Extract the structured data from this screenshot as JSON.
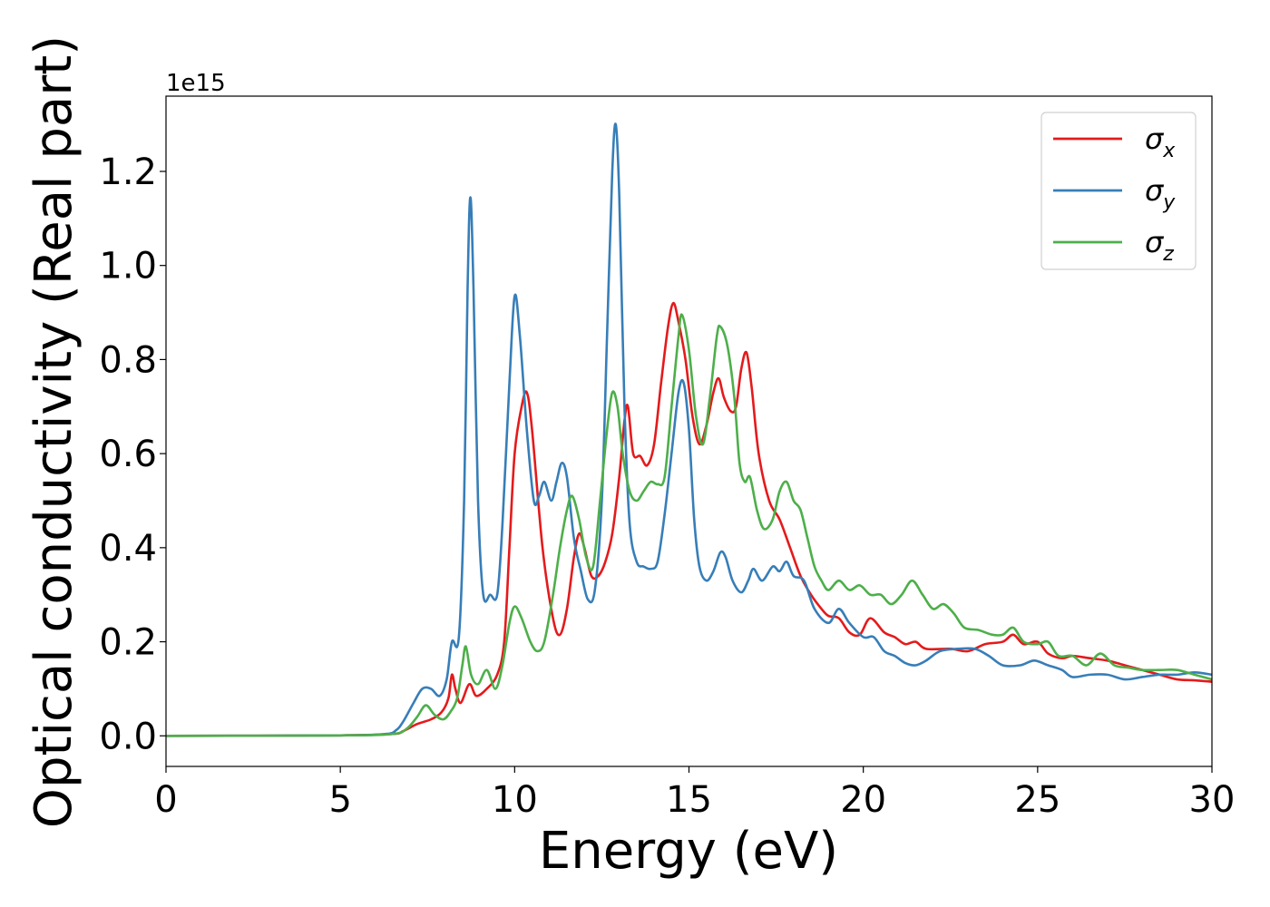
{
  "chart_data": {
    "type": "line",
    "title": "",
    "xlabel": "Energy (eV)",
    "ylabel": "Optical conductivity (Real part)",
    "y_offset_label": "1e15",
    "xlim": [
      0,
      30
    ],
    "ylim": [
      -0.065,
      1.36
    ],
    "x_ticks": [
      0,
      5,
      10,
      15,
      20,
      25,
      30
    ],
    "x_tick_labels": [
      "0",
      "5",
      "10",
      "15",
      "20",
      "25",
      "30"
    ],
    "y_ticks": [
      0.0,
      0.2,
      0.4,
      0.6,
      0.8,
      1.0,
      1.2
    ],
    "y_tick_labels": [
      "0.0",
      "0.2",
      "0.4",
      "0.6",
      "0.8",
      "1.0",
      "1.2"
    ],
    "grid": false,
    "legend_position": "top-right",
    "series": [
      {
        "name": "σx",
        "symbol": "σ",
        "subscript": "x",
        "color": "#e41a1c",
        "points": [
          [
            0,
            0
          ],
          [
            5,
            0.001
          ],
          [
            6.5,
            0.004
          ],
          [
            6.8,
            0.01
          ],
          [
            7.2,
            0.025
          ],
          [
            7.6,
            0.035
          ],
          [
            7.9,
            0.05
          ],
          [
            8.1,
            0.08
          ],
          [
            8.2,
            0.13
          ],
          [
            8.3,
            0.1
          ],
          [
            8.45,
            0.07
          ],
          [
            8.7,
            0.11
          ],
          [
            8.9,
            0.085
          ],
          [
            9.2,
            0.1
          ],
          [
            9.5,
            0.13
          ],
          [
            9.7,
            0.2
          ],
          [
            9.85,
            0.4
          ],
          [
            10.0,
            0.6
          ],
          [
            10.2,
            0.7
          ],
          [
            10.35,
            0.73
          ],
          [
            10.5,
            0.65
          ],
          [
            10.8,
            0.4
          ],
          [
            11.1,
            0.25
          ],
          [
            11.3,
            0.215
          ],
          [
            11.5,
            0.27
          ],
          [
            11.7,
            0.38
          ],
          [
            11.85,
            0.43
          ],
          [
            12.0,
            0.4
          ],
          [
            12.2,
            0.34
          ],
          [
            12.4,
            0.34
          ],
          [
            12.6,
            0.37
          ],
          [
            12.8,
            0.43
          ],
          [
            13.0,
            0.55
          ],
          [
            13.15,
            0.67
          ],
          [
            13.25,
            0.7
          ],
          [
            13.4,
            0.6
          ],
          [
            13.6,
            0.595
          ],
          [
            13.8,
            0.575
          ],
          [
            14.0,
            0.62
          ],
          [
            14.2,
            0.75
          ],
          [
            14.4,
            0.87
          ],
          [
            14.55,
            0.92
          ],
          [
            14.7,
            0.88
          ],
          [
            14.9,
            0.8
          ],
          [
            15.1,
            0.68
          ],
          [
            15.3,
            0.62
          ],
          [
            15.5,
            0.66
          ],
          [
            15.7,
            0.73
          ],
          [
            15.85,
            0.76
          ],
          [
            16.0,
            0.72
          ],
          [
            16.2,
            0.69
          ],
          [
            16.35,
            0.7
          ],
          [
            16.5,
            0.78
          ],
          [
            16.65,
            0.815
          ],
          [
            16.8,
            0.74
          ],
          [
            17.0,
            0.6
          ],
          [
            17.3,
            0.5
          ],
          [
            17.6,
            0.46
          ],
          [
            17.9,
            0.4
          ],
          [
            18.2,
            0.34
          ],
          [
            18.5,
            0.3
          ],
          [
            18.8,
            0.27
          ],
          [
            19.0,
            0.255
          ],
          [
            19.3,
            0.25
          ],
          [
            19.6,
            0.22
          ],
          [
            19.9,
            0.215
          ],
          [
            20.2,
            0.25
          ],
          [
            20.6,
            0.22
          ],
          [
            20.9,
            0.21
          ],
          [
            21.2,
            0.195
          ],
          [
            21.5,
            0.2
          ],
          [
            21.8,
            0.185
          ],
          [
            22.5,
            0.185
          ],
          [
            23.0,
            0.18
          ],
          [
            23.5,
            0.195
          ],
          [
            24.0,
            0.2
          ],
          [
            24.3,
            0.215
          ],
          [
            24.6,
            0.195
          ],
          [
            25.0,
            0.2
          ],
          [
            25.3,
            0.175
          ],
          [
            25.7,
            0.165
          ],
          [
            26.0,
            0.17
          ],
          [
            26.5,
            0.165
          ],
          [
            27.0,
            0.16
          ],
          [
            27.5,
            0.15
          ],
          [
            28.0,
            0.14
          ],
          [
            28.5,
            0.13
          ],
          [
            29.0,
            0.12
          ],
          [
            29.5,
            0.118
          ],
          [
            30.0,
            0.115
          ]
        ]
      },
      {
        "name": "σy",
        "symbol": "σ",
        "subscript": "y",
        "color": "#377eb8",
        "points": [
          [
            0,
            0
          ],
          [
            5,
            0.001
          ],
          [
            6.3,
            0.004
          ],
          [
            6.6,
            0.012
          ],
          [
            6.8,
            0.03
          ],
          [
            7.1,
            0.07
          ],
          [
            7.35,
            0.1
          ],
          [
            7.6,
            0.1
          ],
          [
            7.85,
            0.085
          ],
          [
            8.05,
            0.12
          ],
          [
            8.2,
            0.2
          ],
          [
            8.4,
            0.21
          ],
          [
            8.55,
            0.5
          ],
          [
            8.65,
            0.95
          ],
          [
            8.73,
            1.145
          ],
          [
            8.82,
            0.95
          ],
          [
            8.95,
            0.5
          ],
          [
            9.1,
            0.3
          ],
          [
            9.3,
            0.3
          ],
          [
            9.5,
            0.3
          ],
          [
            9.65,
            0.45
          ],
          [
            9.85,
            0.75
          ],
          [
            10.0,
            0.935
          ],
          [
            10.15,
            0.85
          ],
          [
            10.35,
            0.65
          ],
          [
            10.55,
            0.5
          ],
          [
            10.7,
            0.51
          ],
          [
            10.85,
            0.54
          ],
          [
            11.05,
            0.5
          ],
          [
            11.2,
            0.54
          ],
          [
            11.35,
            0.58
          ],
          [
            11.5,
            0.55
          ],
          [
            11.7,
            0.42
          ],
          [
            11.9,
            0.35
          ],
          [
            12.1,
            0.29
          ],
          [
            12.3,
            0.31
          ],
          [
            12.5,
            0.5
          ],
          [
            12.65,
            0.85
          ],
          [
            12.8,
            1.2
          ],
          [
            12.9,
            1.3
          ],
          [
            13.0,
            1.15
          ],
          [
            13.15,
            0.7
          ],
          [
            13.3,
            0.45
          ],
          [
            13.5,
            0.37
          ],
          [
            13.7,
            0.36
          ],
          [
            13.9,
            0.355
          ],
          [
            14.1,
            0.37
          ],
          [
            14.3,
            0.47
          ],
          [
            14.5,
            0.6
          ],
          [
            14.7,
            0.73
          ],
          [
            14.85,
            0.75
          ],
          [
            15.0,
            0.65
          ],
          [
            15.15,
            0.46
          ],
          [
            15.3,
            0.36
          ],
          [
            15.5,
            0.33
          ],
          [
            15.7,
            0.35
          ],
          [
            15.9,
            0.39
          ],
          [
            16.05,
            0.38
          ],
          [
            16.25,
            0.33
          ],
          [
            16.5,
            0.305
          ],
          [
            16.7,
            0.33
          ],
          [
            16.85,
            0.355
          ],
          [
            17.1,
            0.33
          ],
          [
            17.4,
            0.36
          ],
          [
            17.6,
            0.35
          ],
          [
            17.8,
            0.37
          ],
          [
            18.0,
            0.34
          ],
          [
            18.3,
            0.33
          ],
          [
            18.6,
            0.27
          ],
          [
            19.0,
            0.24
          ],
          [
            19.3,
            0.27
          ],
          [
            19.6,
            0.24
          ],
          [
            20.0,
            0.21
          ],
          [
            20.3,
            0.21
          ],
          [
            20.6,
            0.18
          ],
          [
            20.9,
            0.17
          ],
          [
            21.2,
            0.155
          ],
          [
            21.5,
            0.15
          ],
          [
            21.8,
            0.16
          ],
          [
            22.2,
            0.18
          ],
          [
            22.7,
            0.185
          ],
          [
            23.2,
            0.185
          ],
          [
            23.6,
            0.17
          ],
          [
            24.0,
            0.15
          ],
          [
            24.5,
            0.15
          ],
          [
            24.9,
            0.16
          ],
          [
            25.3,
            0.15
          ],
          [
            25.7,
            0.14
          ],
          [
            26.0,
            0.125
          ],
          [
            26.5,
            0.13
          ],
          [
            27.0,
            0.13
          ],
          [
            27.5,
            0.12
          ],
          [
            28.0,
            0.125
          ],
          [
            28.5,
            0.13
          ],
          [
            29.0,
            0.13
          ],
          [
            29.5,
            0.135
          ],
          [
            30.0,
            0.13
          ]
        ]
      },
      {
        "name": "σz",
        "symbol": "σ",
        "subscript": "z",
        "color": "#4daf4a",
        "points": [
          [
            0,
            0
          ],
          [
            5,
            0.001
          ],
          [
            6.5,
            0.004
          ],
          [
            6.9,
            0.015
          ],
          [
            7.2,
            0.04
          ],
          [
            7.45,
            0.065
          ],
          [
            7.7,
            0.045
          ],
          [
            7.95,
            0.035
          ],
          [
            8.15,
            0.05
          ],
          [
            8.35,
            0.08
          ],
          [
            8.5,
            0.15
          ],
          [
            8.6,
            0.19
          ],
          [
            8.75,
            0.13
          ],
          [
            8.95,
            0.11
          ],
          [
            9.2,
            0.14
          ],
          [
            9.45,
            0.1
          ],
          [
            9.65,
            0.15
          ],
          [
            9.85,
            0.24
          ],
          [
            10.0,
            0.275
          ],
          [
            10.2,
            0.25
          ],
          [
            10.45,
            0.2
          ],
          [
            10.65,
            0.18
          ],
          [
            10.85,
            0.2
          ],
          [
            11.1,
            0.3
          ],
          [
            11.3,
            0.4
          ],
          [
            11.5,
            0.48
          ],
          [
            11.65,
            0.51
          ],
          [
            11.85,
            0.46
          ],
          [
            12.05,
            0.38
          ],
          [
            12.25,
            0.36
          ],
          [
            12.45,
            0.5
          ],
          [
            12.65,
            0.65
          ],
          [
            12.8,
            0.73
          ],
          [
            12.95,
            0.7
          ],
          [
            13.1,
            0.6
          ],
          [
            13.3,
            0.52
          ],
          [
            13.5,
            0.5
          ],
          [
            13.7,
            0.52
          ],
          [
            13.9,
            0.54
          ],
          [
            14.1,
            0.535
          ],
          [
            14.3,
            0.55
          ],
          [
            14.5,
            0.7
          ],
          [
            14.7,
            0.85
          ],
          [
            14.8,
            0.895
          ],
          [
            15.0,
            0.82
          ],
          [
            15.2,
            0.68
          ],
          [
            15.4,
            0.62
          ],
          [
            15.6,
            0.72
          ],
          [
            15.8,
            0.85
          ],
          [
            15.9,
            0.87
          ],
          [
            16.1,
            0.83
          ],
          [
            16.3,
            0.72
          ],
          [
            16.45,
            0.58
          ],
          [
            16.6,
            0.54
          ],
          [
            16.75,
            0.55
          ],
          [
            16.95,
            0.48
          ],
          [
            17.15,
            0.44
          ],
          [
            17.4,
            0.46
          ],
          [
            17.6,
            0.52
          ],
          [
            17.8,
            0.54
          ],
          [
            18.0,
            0.5
          ],
          [
            18.2,
            0.48
          ],
          [
            18.4,
            0.42
          ],
          [
            18.6,
            0.36
          ],
          [
            18.8,
            0.33
          ],
          [
            19.0,
            0.31
          ],
          [
            19.3,
            0.33
          ],
          [
            19.6,
            0.31
          ],
          [
            19.9,
            0.32
          ],
          [
            20.2,
            0.3
          ],
          [
            20.5,
            0.3
          ],
          [
            20.8,
            0.28
          ],
          [
            21.1,
            0.3
          ],
          [
            21.4,
            0.33
          ],
          [
            21.7,
            0.3
          ],
          [
            22.0,
            0.27
          ],
          [
            22.3,
            0.28
          ],
          [
            22.6,
            0.26
          ],
          [
            22.9,
            0.23
          ],
          [
            23.3,
            0.225
          ],
          [
            23.7,
            0.215
          ],
          [
            24.0,
            0.215
          ],
          [
            24.3,
            0.23
          ],
          [
            24.6,
            0.2
          ],
          [
            25.0,
            0.195
          ],
          [
            25.3,
            0.2
          ],
          [
            25.6,
            0.17
          ],
          [
            26.0,
            0.17
          ],
          [
            26.4,
            0.15
          ],
          [
            26.8,
            0.175
          ],
          [
            27.2,
            0.15
          ],
          [
            27.6,
            0.145
          ],
          [
            28.0,
            0.14
          ],
          [
            28.5,
            0.14
          ],
          [
            29.0,
            0.14
          ],
          [
            29.5,
            0.13
          ],
          [
            30.0,
            0.12
          ]
        ]
      }
    ]
  }
}
